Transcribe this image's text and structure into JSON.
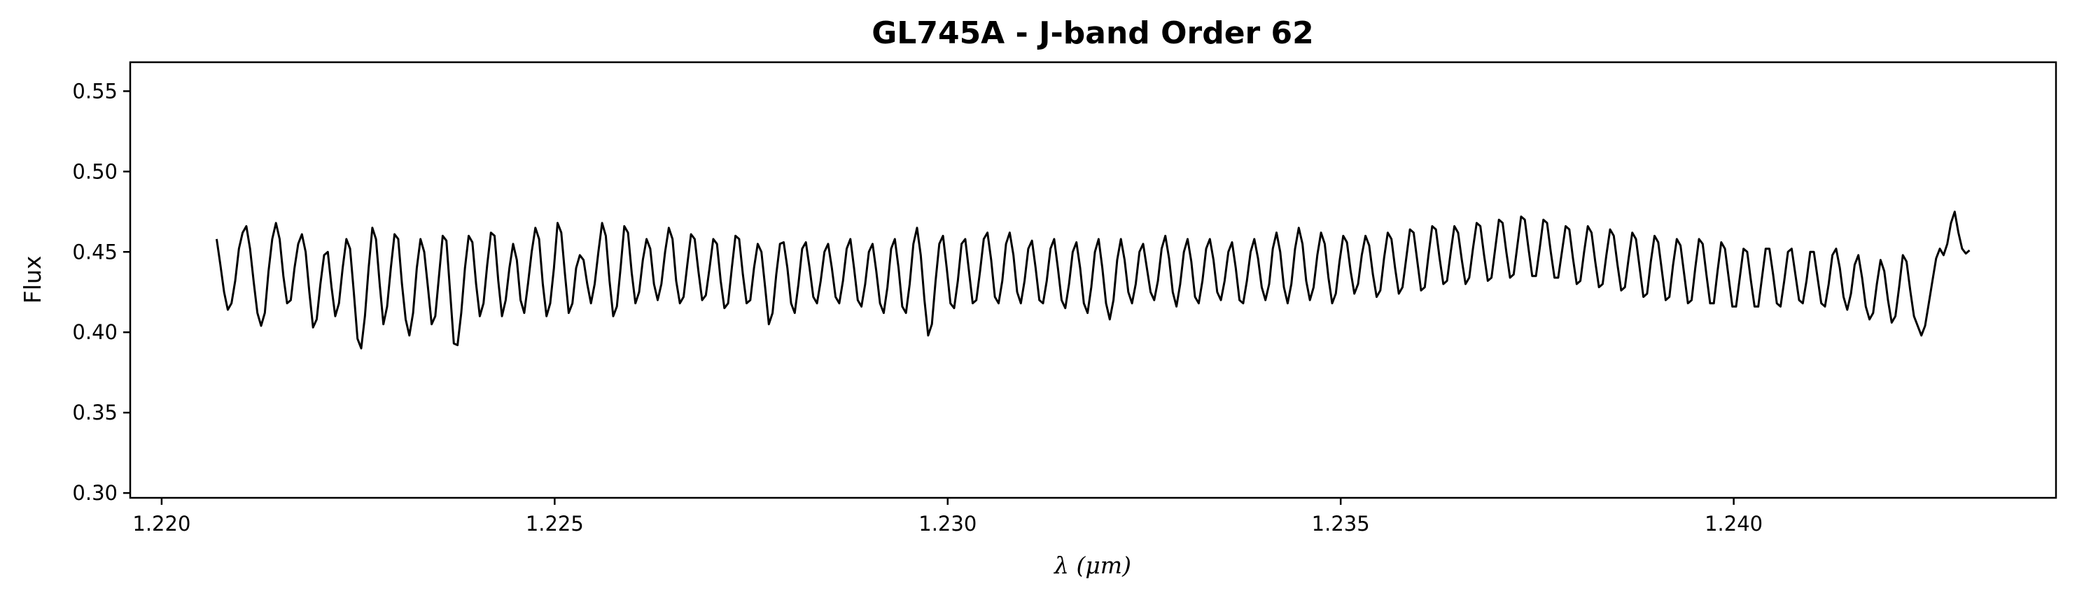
{
  "chart_data": {
    "type": "line",
    "title": "GL745A - J-band Order 62",
    "xlabel": "λ (μm)",
    "ylabel": "Flux",
    "xlim": [
      1.2196,
      1.2441
    ],
    "ylim": [
      0.297,
      0.568
    ],
    "x_ticks": [
      1.22,
      1.225,
      1.23,
      1.235,
      1.24
    ],
    "x_tick_labels": [
      "1.220",
      "1.225",
      "1.230",
      "1.235",
      "1.240"
    ],
    "y_ticks": [
      0.3,
      0.35,
      0.4,
      0.45,
      0.5,
      0.55
    ],
    "y_tick_labels": [
      "0.30",
      "0.35",
      "0.40",
      "0.45",
      "0.50",
      "0.55"
    ],
    "grid": false,
    "line_color": "#000000",
    "series": [
      {
        "x_start": 1.2207,
        "x_end": 1.243,
        "values": [
          0.458,
          0.442,
          0.425,
          0.414,
          0.418,
          0.432,
          0.452,
          0.462,
          0.466,
          0.452,
          0.431,
          0.412,
          0.404,
          0.412,
          0.438,
          0.458,
          0.468,
          0.458,
          0.435,
          0.418,
          0.42,
          0.44,
          0.455,
          0.461,
          0.45,
          0.425,
          0.403,
          0.408,
          0.43,
          0.448,
          0.45,
          0.428,
          0.41,
          0.418,
          0.44,
          0.458,
          0.452,
          0.425,
          0.396,
          0.39,
          0.41,
          0.44,
          0.465,
          0.458,
          0.43,
          0.405,
          0.416,
          0.44,
          0.461,
          0.458,
          0.43,
          0.408,
          0.398,
          0.412,
          0.44,
          0.458,
          0.45,
          0.428,
          0.405,
          0.41,
          0.435,
          0.46,
          0.457,
          0.425,
          0.393,
          0.392,
          0.412,
          0.44,
          0.46,
          0.456,
          0.43,
          0.41,
          0.418,
          0.442,
          0.462,
          0.46,
          0.432,
          0.41,
          0.42,
          0.44,
          0.455,
          0.445,
          0.42,
          0.412,
          0.43,
          0.45,
          0.465,
          0.458,
          0.43,
          0.41,
          0.418,
          0.44,
          0.468,
          0.462,
          0.436,
          0.412,
          0.418,
          0.44,
          0.448,
          0.445,
          0.43,
          0.418,
          0.43,
          0.45,
          0.468,
          0.46,
          0.432,
          0.41,
          0.416,
          0.44,
          0.466,
          0.462,
          0.437,
          0.418,
          0.425,
          0.445,
          0.458,
          0.452,
          0.43,
          0.42,
          0.43,
          0.45,
          0.465,
          0.458,
          0.432,
          0.418,
          0.422,
          0.442,
          0.461,
          0.458,
          0.438,
          0.42,
          0.423,
          0.44,
          0.458,
          0.455,
          0.432,
          0.415,
          0.418,
          0.44,
          0.46,
          0.458,
          0.436,
          0.418,
          0.42,
          0.44,
          0.455,
          0.45,
          0.428,
          0.405,
          0.412,
          0.436,
          0.455,
          0.456,
          0.44,
          0.418,
          0.412,
          0.43,
          0.452,
          0.456,
          0.44,
          0.422,
          0.418,
          0.432,
          0.45,
          0.455,
          0.44,
          0.422,
          0.418,
          0.432,
          0.452,
          0.458,
          0.44,
          0.42,
          0.416,
          0.43,
          0.45,
          0.455,
          0.438,
          0.418,
          0.412,
          0.428,
          0.452,
          0.458,
          0.44,
          0.416,
          0.412,
          0.43,
          0.455,
          0.465,
          0.448,
          0.42,
          0.398,
          0.405,
          0.432,
          0.455,
          0.46,
          0.44,
          0.418,
          0.415,
          0.432,
          0.455,
          0.458,
          0.438,
          0.418,
          0.42,
          0.438,
          0.458,
          0.462,
          0.445,
          0.422,
          0.418,
          0.432,
          0.455,
          0.462,
          0.448,
          0.425,
          0.418,
          0.432,
          0.452,
          0.457,
          0.44,
          0.42,
          0.418,
          0.432,
          0.452,
          0.458,
          0.44,
          0.42,
          0.415,
          0.43,
          0.45,
          0.456,
          0.44,
          0.418,
          0.412,
          0.428,
          0.45,
          0.458,
          0.44,
          0.418,
          0.408,
          0.42,
          0.445,
          0.458,
          0.445,
          0.425,
          0.418,
          0.43,
          0.45,
          0.455,
          0.44,
          0.425,
          0.42,
          0.432,
          0.452,
          0.46,
          0.446,
          0.425,
          0.416,
          0.43,
          0.45,
          0.458,
          0.444,
          0.422,
          0.418,
          0.432,
          0.452,
          0.458,
          0.445,
          0.425,
          0.42,
          0.432,
          0.45,
          0.456,
          0.44,
          0.42,
          0.418,
          0.432,
          0.45,
          0.458,
          0.446,
          0.428,
          0.42,
          0.43,
          0.452,
          0.462,
          0.45,
          0.428,
          0.418,
          0.43,
          0.452,
          0.465,
          0.455,
          0.432,
          0.42,
          0.428,
          0.448,
          0.462,
          0.455,
          0.434,
          0.418,
          0.424,
          0.444,
          0.46,
          0.456,
          0.438,
          0.424,
          0.43,
          0.448,
          0.46,
          0.454,
          0.436,
          0.422,
          0.426,
          0.446,
          0.462,
          0.458,
          0.44,
          0.424,
          0.428,
          0.446,
          0.464,
          0.462,
          0.444,
          0.426,
          0.428,
          0.448,
          0.466,
          0.464,
          0.446,
          0.43,
          0.432,
          0.45,
          0.466,
          0.462,
          0.445,
          0.43,
          0.434,
          0.452,
          0.468,
          0.466,
          0.448,
          0.432,
          0.434,
          0.452,
          0.47,
          0.468,
          0.45,
          0.434,
          0.436,
          0.454,
          0.472,
          0.47,
          0.452,
          0.435,
          0.435,
          0.452,
          0.47,
          0.468,
          0.45,
          0.434,
          0.434,
          0.45,
          0.466,
          0.464,
          0.446,
          0.43,
          0.432,
          0.45,
          0.466,
          0.462,
          0.444,
          0.428,
          0.43,
          0.448,
          0.464,
          0.46,
          0.442,
          0.426,
          0.428,
          0.446,
          0.462,
          0.458,
          0.44,
          0.422,
          0.424,
          0.444,
          0.46,
          0.456,
          0.438,
          0.42,
          0.422,
          0.442,
          0.458,
          0.454,
          0.436,
          0.418,
          0.42,
          0.44,
          0.458,
          0.455,
          0.436,
          0.418,
          0.418,
          0.438,
          0.456,
          0.452,
          0.434,
          0.416,
          0.416,
          0.434,
          0.452,
          0.45,
          0.432,
          0.416,
          0.416,
          0.434,
          0.452,
          0.452,
          0.436,
          0.418,
          0.416,
          0.432,
          0.45,
          0.452,
          0.436,
          0.42,
          0.418,
          0.432,
          0.45,
          0.45,
          0.434,
          0.418,
          0.416,
          0.43,
          0.448,
          0.452,
          0.44,
          0.422,
          0.414,
          0.424,
          0.442,
          0.448,
          0.434,
          0.416,
          0.408,
          0.412,
          0.43,
          0.445,
          0.438,
          0.42,
          0.406,
          0.41,
          0.428,
          0.448,
          0.444,
          0.426,
          0.41,
          0.404,
          0.398,
          0.404,
          0.418,
          0.432,
          0.446,
          0.452,
          0.448,
          0.455,
          0.468,
          0.475,
          0.462,
          0.452,
          0.449,
          0.451
        ]
      }
    ]
  }
}
